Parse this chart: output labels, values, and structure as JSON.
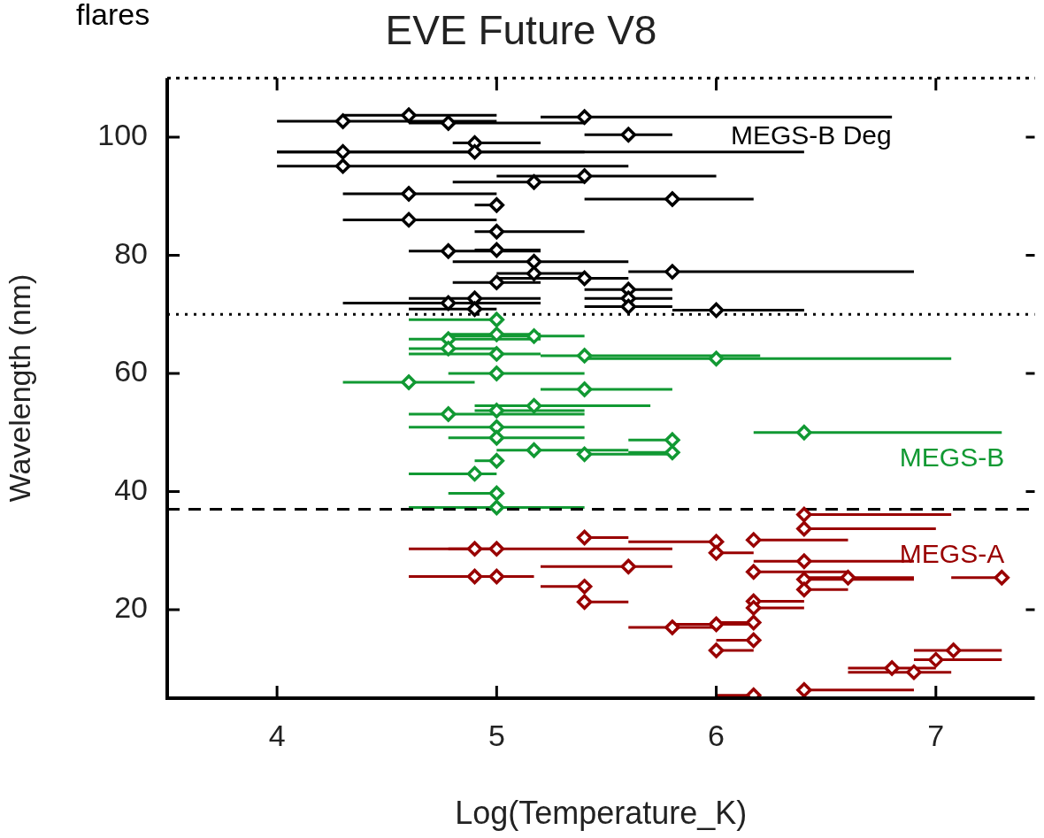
{
  "chart_data": {
    "type": "scatter",
    "title": "EVE Future V8",
    "xlabel": "Log(Temperature_K)",
    "ylabel": "Wavelength (nm)",
    "annotations": [
      "flares"
    ],
    "xlim": [
      3.5,
      7.45
    ],
    "xticks": [
      4,
      5,
      6,
      7
    ],
    "ylim": [
      5,
      110
    ],
    "yticks": [
      20,
      40,
      60,
      80,
      100
    ],
    "grid": false,
    "legend": "right",
    "marker": "diamond",
    "ref_lines": [
      {
        "axis": "y",
        "value": 70,
        "color": "#000000",
        "line_style": "dotted"
      },
      {
        "axis": "y",
        "value": 37,
        "color": "#000000",
        "line_style": "dashed"
      }
    ],
    "series": [
      {
        "name": "MEGS-B Deg",
        "color": "#000000",
        "x": [
          4.3,
          4.6,
          4.78,
          5.4,
          5.6,
          4.9,
          4.9,
          4.3,
          4.3,
          5.17,
          5.4,
          4.6,
          5.0,
          5.8,
          4.6,
          5.0,
          4.78,
          5.0,
          5.17,
          5.0,
          5.17,
          5.4,
          5.8,
          5.6,
          5.6,
          5.6,
          6.0,
          4.78,
          4.9,
          4.9
        ],
        "values": [
          102.7,
          103.7,
          102.4,
          103.4,
          100.4,
          99.0,
          97.5,
          97.5,
          95.1,
          92.4,
          93.4,
          90.4,
          88.5,
          89.5,
          86.0,
          84.0,
          80.7,
          80.9,
          78.9,
          75.4,
          76.9,
          76.1,
          77.2,
          74.2,
          72.7,
          71.3,
          70.7,
          71.9,
          72.7,
          70.9
        ],
        "xerrors": [
          [
            4.0,
            5.0
          ],
          [
            4.3,
            5.0
          ],
          [
            4.6,
            5.4
          ],
          [
            5.2,
            6.8
          ],
          [
            5.4,
            5.8
          ],
          [
            4.8,
            5.2
          ],
          [
            4.0,
            6.4
          ],
          [
            4.0,
            5.4
          ],
          [
            4.0,
            5.6
          ],
          [
            4.8,
            5.4
          ],
          [
            5.0,
            6.0
          ],
          [
            4.3,
            5.0
          ],
          [
            4.9,
            5.0
          ],
          [
            5.4,
            6.17
          ],
          [
            4.3,
            5.0
          ],
          [
            4.9,
            5.4
          ],
          [
            4.6,
            5.2
          ],
          [
            4.9,
            5.2
          ],
          [
            4.8,
            5.6
          ],
          [
            4.8,
            5.2
          ],
          [
            5.0,
            5.4
          ],
          [
            5.0,
            5.6
          ],
          [
            5.6,
            6.9
          ],
          [
            5.4,
            5.8
          ],
          [
            5.4,
            5.8
          ],
          [
            5.4,
            5.8
          ],
          [
            5.8,
            6.4
          ],
          [
            4.3,
            5.2
          ],
          [
            4.6,
            5.2
          ],
          [
            4.6,
            5.0
          ]
        ]
      },
      {
        "name": "MEGS-B",
        "color": "#119933",
        "x": [
          5.0,
          4.78,
          5.0,
          5.17,
          4.78,
          5.0,
          5.4,
          6.0,
          5.0,
          4.6,
          5.4,
          5.17,
          5.0,
          4.78,
          5.0,
          5.0,
          6.4,
          5.8,
          5.17,
          5.4,
          5.8,
          5.0,
          4.9,
          5.0,
          5.0
        ],
        "values": [
          69.1,
          65.8,
          66.6,
          66.3,
          64.2,
          63.3,
          63.0,
          62.5,
          60.0,
          58.5,
          57.3,
          54.5,
          53.7,
          53.1,
          50.9,
          49.1,
          50.0,
          48.7,
          47.0,
          46.3,
          46.6,
          45.2,
          43.0,
          39.7,
          37.3
        ],
        "xerrors": [
          [
            4.6,
            5.0
          ],
          [
            4.6,
            5.2
          ],
          [
            4.78,
            5.2
          ],
          [
            4.78,
            5.4
          ],
          [
            4.6,
            5.0
          ],
          [
            4.6,
            5.2
          ],
          [
            5.2,
            6.2
          ],
          [
            5.4,
            7.07
          ],
          [
            4.78,
            5.4
          ],
          [
            4.3,
            4.9
          ],
          [
            5.2,
            5.8
          ],
          [
            4.9,
            5.7
          ],
          [
            4.9,
            5.4
          ],
          [
            4.6,
            5.4
          ],
          [
            4.6,
            5.4
          ],
          [
            4.78,
            5.4
          ],
          [
            6.17,
            7.3
          ],
          [
            5.6,
            5.8
          ],
          [
            5.0,
            5.6
          ],
          [
            5.4,
            5.8
          ],
          [
            5.6,
            5.8
          ],
          [
            4.9,
            5.0
          ],
          [
            4.6,
            5.0
          ],
          [
            4.78,
            5.0
          ],
          [
            4.6,
            5.4
          ]
        ]
      },
      {
        "name": "MEGS-A",
        "color": "#990000",
        "x": [
          6.4,
          6.4,
          5.4,
          6.0,
          6.17,
          4.9,
          5.0,
          6.0,
          6.4,
          5.6,
          6.17,
          4.9,
          5.0,
          6.4,
          6.6,
          7.3,
          6.4,
          5.4,
          5.4,
          6.17,
          6.17,
          5.8,
          6.0,
          6.17,
          6.17,
          6.0,
          7.08,
          7.0,
          6.8,
          6.9,
          6.4,
          6.17
        ],
        "values": [
          36.1,
          33.7,
          32.2,
          31.5,
          31.8,
          30.3,
          30.3,
          29.6,
          28.2,
          27.3,
          26.4,
          25.6,
          25.6,
          25.1,
          25.4,
          25.4,
          23.4,
          23.9,
          21.3,
          21.4,
          20.3,
          17.0,
          17.5,
          17.8,
          14.8,
          13.1,
          13.1,
          11.5,
          10.1,
          9.4,
          6.4,
          5.5
        ],
        "xerrors": [
          [
            6.4,
            7.07
          ],
          [
            6.4,
            7.0
          ],
          [
            5.4,
            5.6
          ],
          [
            5.6,
            6.0
          ],
          [
            6.17,
            6.6
          ],
          [
            4.6,
            5.0
          ],
          [
            4.78,
            5.8
          ],
          [
            6.0,
            6.17
          ],
          [
            6.17,
            6.9
          ],
          [
            5.2,
            5.8
          ],
          [
            6.17,
            6.6
          ],
          [
            4.6,
            5.0
          ],
          [
            4.78,
            5.17
          ],
          [
            6.4,
            6.9
          ],
          [
            6.4,
            6.9
          ],
          [
            7.07,
            7.3
          ],
          [
            6.4,
            6.6
          ],
          [
            5.2,
            5.4
          ],
          [
            5.4,
            5.6
          ],
          [
            6.17,
            6.4
          ],
          [
            6.17,
            6.4
          ],
          [
            5.6,
            6.0
          ],
          [
            5.8,
            6.17
          ],
          [
            6.0,
            6.17
          ],
          [
            6.0,
            6.17
          ],
          [
            6.0,
            6.17
          ],
          [
            6.9,
            7.3
          ],
          [
            6.9,
            7.3
          ],
          [
            6.6,
            7.0
          ],
          [
            6.6,
            7.07
          ],
          [
            6.4,
            6.9
          ],
          [
            6.0,
            6.17
          ]
        ]
      }
    ]
  }
}
